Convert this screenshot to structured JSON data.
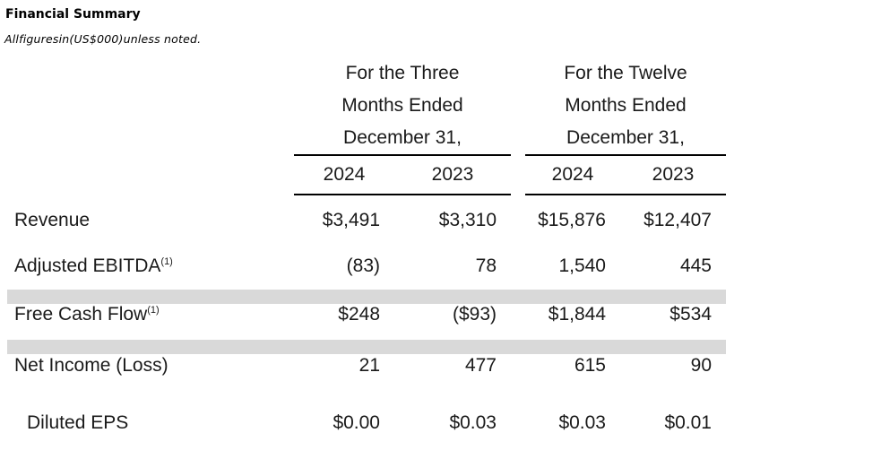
{
  "page": {
    "title": "Financial Summary",
    "subtitle": "Allfiguresin(US$000)unless noted."
  },
  "table": {
    "groups": [
      {
        "header": "For the Three\nMonths Ended\nDecember 31,"
      },
      {
        "header": "For the Twelve\nMonths Ended\nDecember 31,"
      }
    ],
    "years": [
      "2024",
      "2023",
      "2024",
      "2023"
    ],
    "rows": [
      {
        "label": "Revenue",
        "sup": "",
        "values": [
          "$3,491",
          "$3,310",
          "$15,876",
          "$12,407"
        ]
      },
      {
        "label": "Adjusted EBITDA",
        "sup": "(1)",
        "values": [
          "(83)",
          "78",
          "1,540",
          "445"
        ]
      },
      {
        "label": "Free Cash Flow",
        "sup": "(1)",
        "values": [
          "$248",
          "($93)",
          "$1,844",
          "$534"
        ]
      },
      {
        "label": "Net Income (Loss)",
        "sup": "",
        "values": [
          "21",
          "477",
          "615",
          "90"
        ]
      },
      {
        "label": "Diluted EPS",
        "sup": "",
        "values": [
          "$0.00",
          "$0.03",
          "$0.03",
          "$0.01"
        ]
      }
    ]
  },
  "colors": {
    "separator_bar": "#d9d9d9",
    "rule": "#000000",
    "text": "#1a1a1a"
  }
}
